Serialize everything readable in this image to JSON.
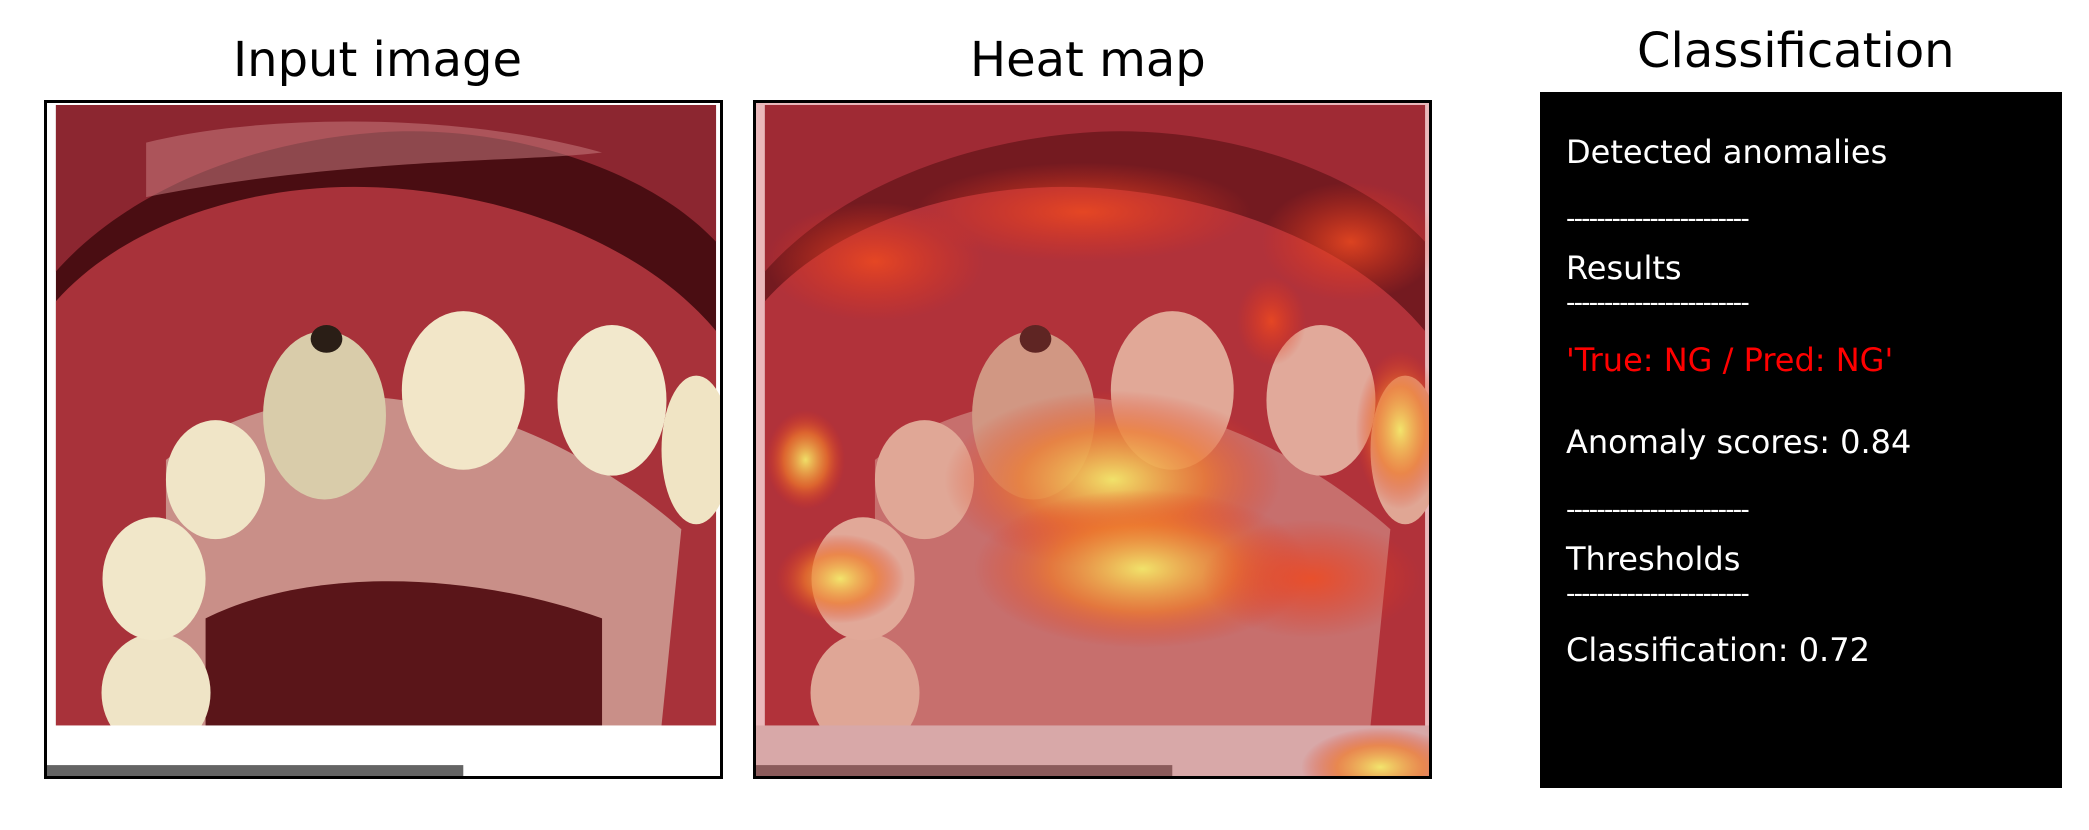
{
  "panels": {
    "input": {
      "title": "Input image"
    },
    "heatmap": {
      "title": "Heat map"
    },
    "classification": {
      "title": "Classification",
      "detected_label": "Detected anomalies",
      "separator": "------------------------",
      "results_label": "Results",
      "result_text": "'True: NG / Pred: NG'",
      "anomaly_score_text": "Anomaly scores: 0.84",
      "thresholds_label": "Thresholds",
      "classification_threshold_text": "Classification: 0.72"
    }
  },
  "colors": {
    "result_text": "#ff0000",
    "classification_text": "#ffffff",
    "classification_background": "#000000",
    "gum_dark": "#5a0f14",
    "gum": "#a8323a",
    "palate": "#c98f88",
    "tooth": "#efe4c6",
    "heat_red": "#e2341c",
    "heat_yellow": "#f3e86a"
  }
}
